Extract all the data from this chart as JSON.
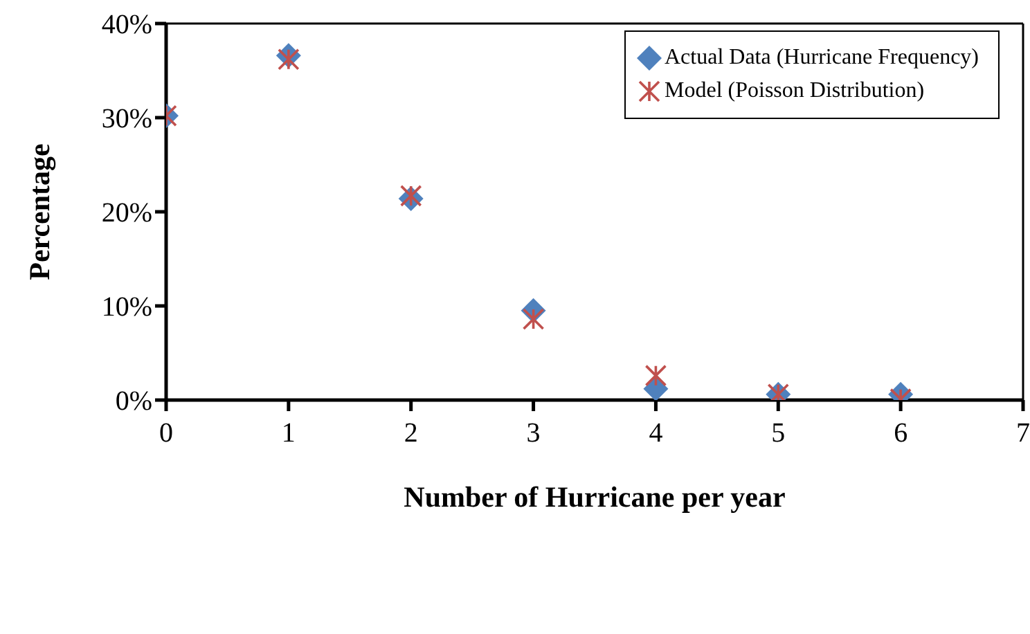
{
  "chart_data": {
    "type": "scatter",
    "xlabel": "Number of Hurricane per year",
    "ylabel": "Percentage",
    "x": [
      0,
      1,
      2,
      3,
      4,
      5,
      6
    ],
    "series": [
      {
        "name": "Actual Data (Hurricane Frequency)",
        "color": "#4f81bd",
        "marker": "diamond",
        "values": [
          30.2,
          36.6,
          21.4,
          9.5,
          1.2,
          0.6,
          0.6
        ]
      },
      {
        "name": "Model (Poisson Distribution)",
        "color": "#c0504d",
        "marker": "cross",
        "values": [
          30.2,
          36.2,
          21.7,
          8.6,
          2.6,
          0.6,
          0.1
        ]
      }
    ],
    "xlim": [
      0,
      7
    ],
    "xticks": [
      0,
      1,
      2,
      3,
      4,
      5,
      6,
      7
    ],
    "ylim": [
      0,
      40
    ],
    "yticks": [
      {
        "value": 0,
        "label": "0%"
      },
      {
        "value": 10,
        "label": "10%"
      },
      {
        "value": 20,
        "label": "20%"
      },
      {
        "value": 30,
        "label": "30%"
      },
      {
        "value": 40,
        "label": "40%"
      }
    ],
    "legend": "top right"
  }
}
